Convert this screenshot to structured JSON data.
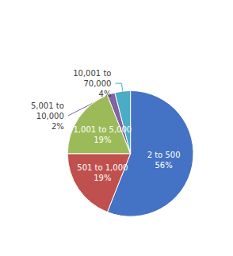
{
  "chart_data": {
    "type": "pie",
    "categories": [
      "2 to 500",
      "501 to 1,000",
      "1,001 to 5,000",
      "5,001 to\n10,000",
      "10,001 to\n70,000"
    ],
    "values": [
      56,
      19,
      19,
      2,
      4
    ],
    "value_labels": [
      "56%",
      "19%",
      "19%",
      "2%",
      "4%"
    ],
    "colors": [
      "#4472C4",
      "#C0504D",
      "#9BBB59",
      "#8064A2",
      "#4BACC6"
    ],
    "data_labels": true
  }
}
